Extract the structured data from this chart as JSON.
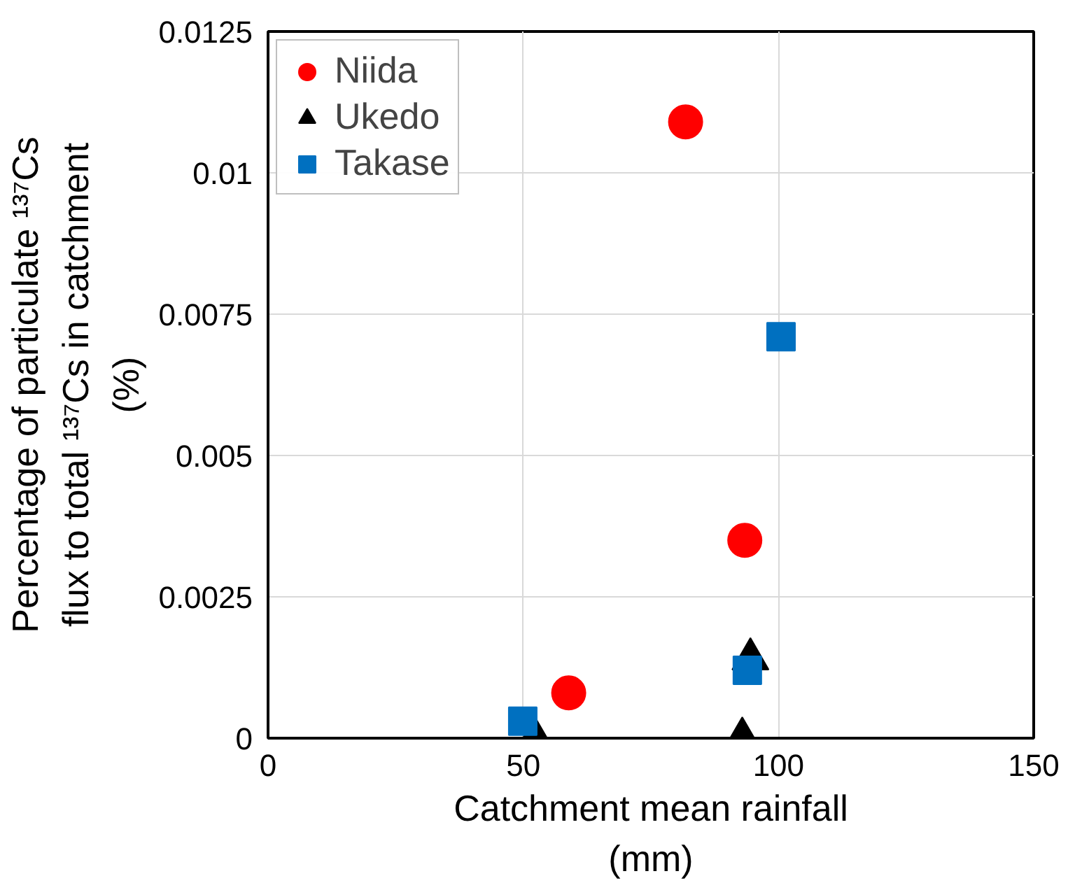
{
  "chart_data": {
    "type": "scatter",
    "xlabel": "Catchment mean rainfall\n(mm)",
    "ylabel": "Percentage of particulate ¹³⁷Cs\nflux to total ¹³⁷Cs in catchment\n(%)",
    "xlim": [
      0,
      150
    ],
    "xticks": [
      0,
      50,
      100,
      150
    ],
    "ylim": [
      0,
      0.0125
    ],
    "yticks": [
      0,
      {
        "value": 0.0025,
        "label": "0.0025"
      },
      {
        "value": 0.005,
        "label": "0.005"
      },
      {
        "value": 0.0075,
        "label": "0.0075"
      },
      {
        "value": 0.01,
        "label": "0.01"
      },
      {
        "value": 0.0125,
        "label": "0.0125"
      }
    ],
    "grid": true,
    "legend": "top left",
    "series": [
      {
        "name": "Niida",
        "color": "#ff0000",
        "marker": "circle",
        "x": [
          81.8,
          93.4,
          58.9
        ],
        "values": [
          0.0109,
          0.0035,
          0.0008
        ]
      },
      {
        "name": "Ukedo",
        "color": "#000000",
        "marker": "triangle",
        "x": [
          52.3,
          92.9,
          94.5
        ],
        "values": [
          0,
          0,
          0.0014
        ]
      },
      {
        "name": "Takase",
        "color": "#0070c0",
        "marker": "square",
        "x": [
          49.9,
          93.9,
          100.5
        ],
        "values": [
          0.0003,
          0.0012,
          0.0071
        ]
      }
    ]
  }
}
